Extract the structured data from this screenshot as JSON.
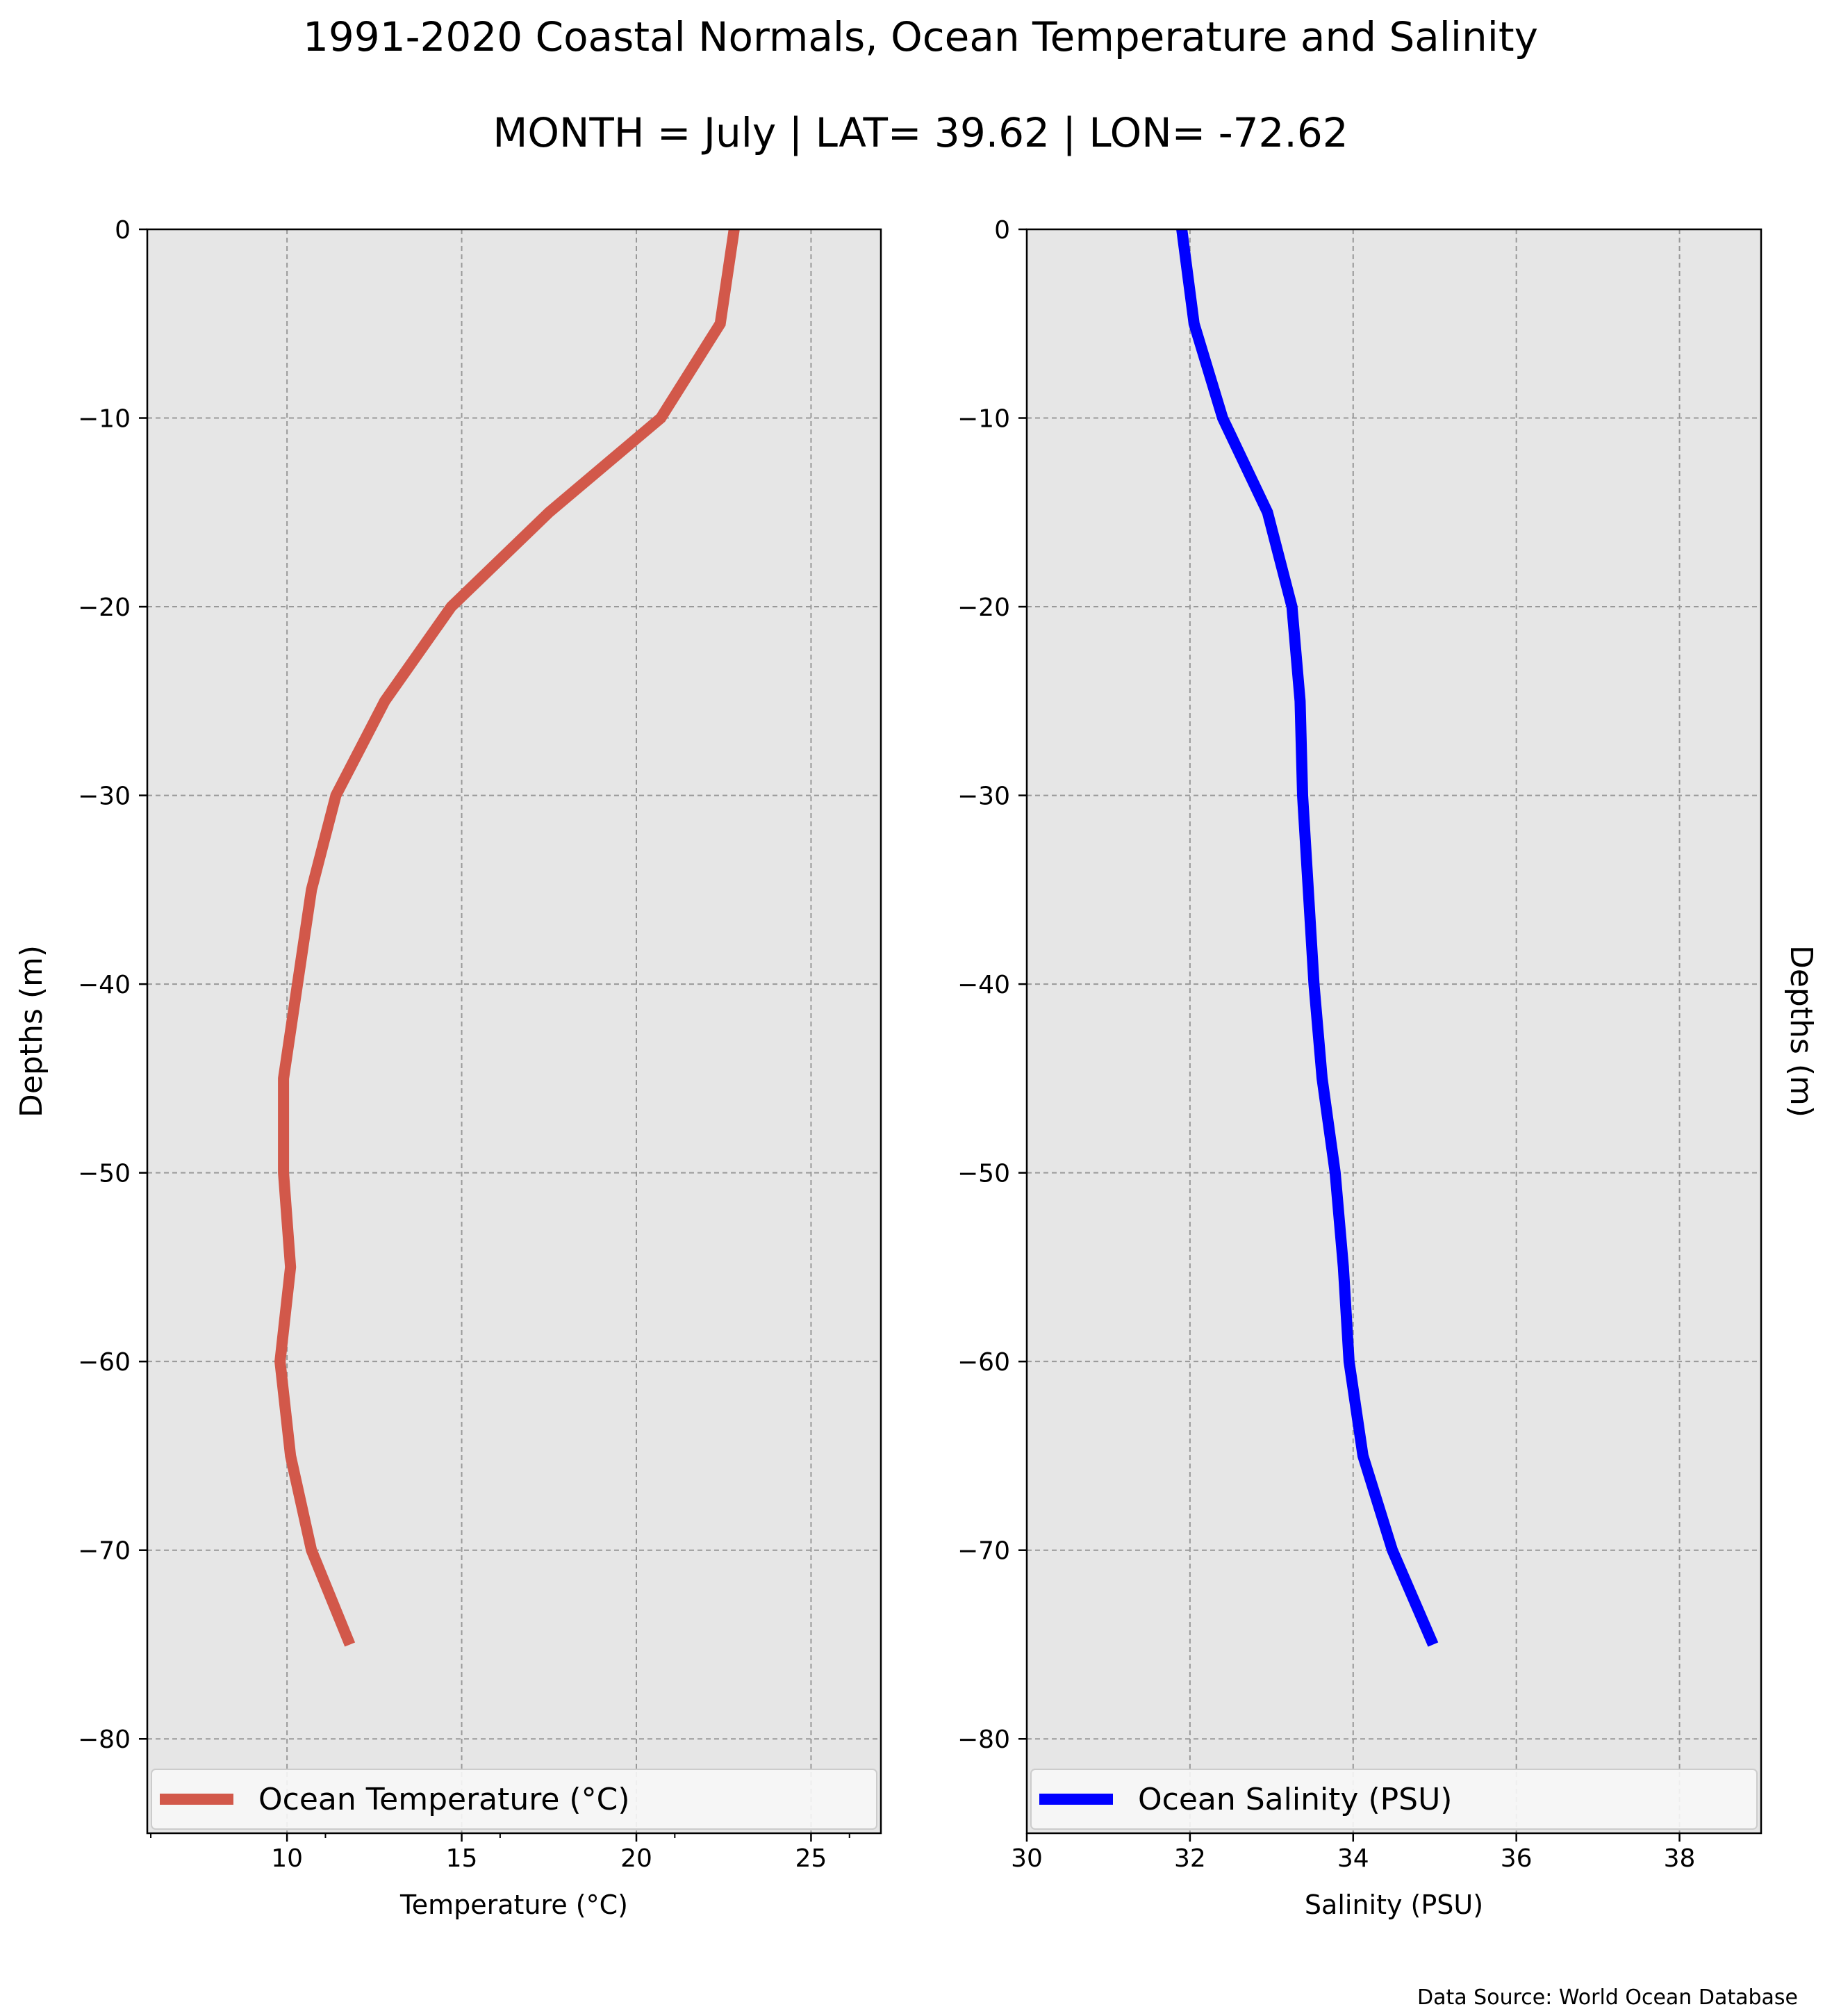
{
  "title": "1991-2020 Coastal Normals, Ocean Temperature and Salinity",
  "subtitle": "MONTH = July | LAT= 39.62 | LON= -72.62",
  "source": "Data Source: World Ocean Database",
  "colors": {
    "temperature": "#d2584a",
    "salinity": "#0000ff",
    "background": "#e6e6e6",
    "grid": "#999999"
  },
  "chart_data": [
    {
      "type": "line",
      "xlabel": "Temperature (°C)",
      "ylabel": "Depths (m)",
      "xlim": [
        6,
        27
      ],
      "ylim": [
        -85,
        0
      ],
      "xticks": [
        10,
        15,
        20,
        25
      ],
      "yticks": [
        0,
        -10,
        -20,
        -30,
        -40,
        -50,
        -60,
        -70,
        -80
      ],
      "grid": true,
      "legend_position": "bottom",
      "series": [
        {
          "name": "Ocean Temperature (°C)",
          "x": [
            22.8,
            22.4,
            20.7,
            17.5,
            14.7,
            12.8,
            11.4,
            10.7,
            10.3,
            9.9,
            9.9,
            10.1,
            9.8,
            10.1,
            10.7,
            11.8
          ],
          "y": [
            0,
            -5,
            -10,
            -15,
            -20,
            -25,
            -30,
            -35,
            -40,
            -45,
            -50,
            -55,
            -60,
            -65,
            -70,
            -75
          ]
        }
      ]
    },
    {
      "type": "line",
      "xlabel": "Salinity (PSU)",
      "ylabel": "Depths (m)",
      "xlim": [
        30,
        39
      ],
      "ylim": [
        -85,
        0
      ],
      "xticks": [
        30,
        32,
        34,
        36,
        38
      ],
      "yticks": [
        0,
        -10,
        -20,
        -30,
        -40,
        -50,
        -60,
        -70,
        -80
      ],
      "grid": true,
      "legend_position": "bottom",
      "series": [
        {
          "name": "Ocean Salinity (PSU)",
          "x": [
            31.9,
            32.05,
            32.4,
            32.95,
            33.25,
            33.35,
            33.38,
            33.45,
            33.52,
            33.62,
            33.78,
            33.88,
            33.95,
            34.12,
            34.48,
            34.98
          ],
          "y": [
            0,
            -5,
            -10,
            -15,
            -20,
            -25,
            -30,
            -35,
            -40,
            -45,
            -50,
            -55,
            -60,
            -65,
            -70,
            -75
          ]
        }
      ]
    }
  ]
}
